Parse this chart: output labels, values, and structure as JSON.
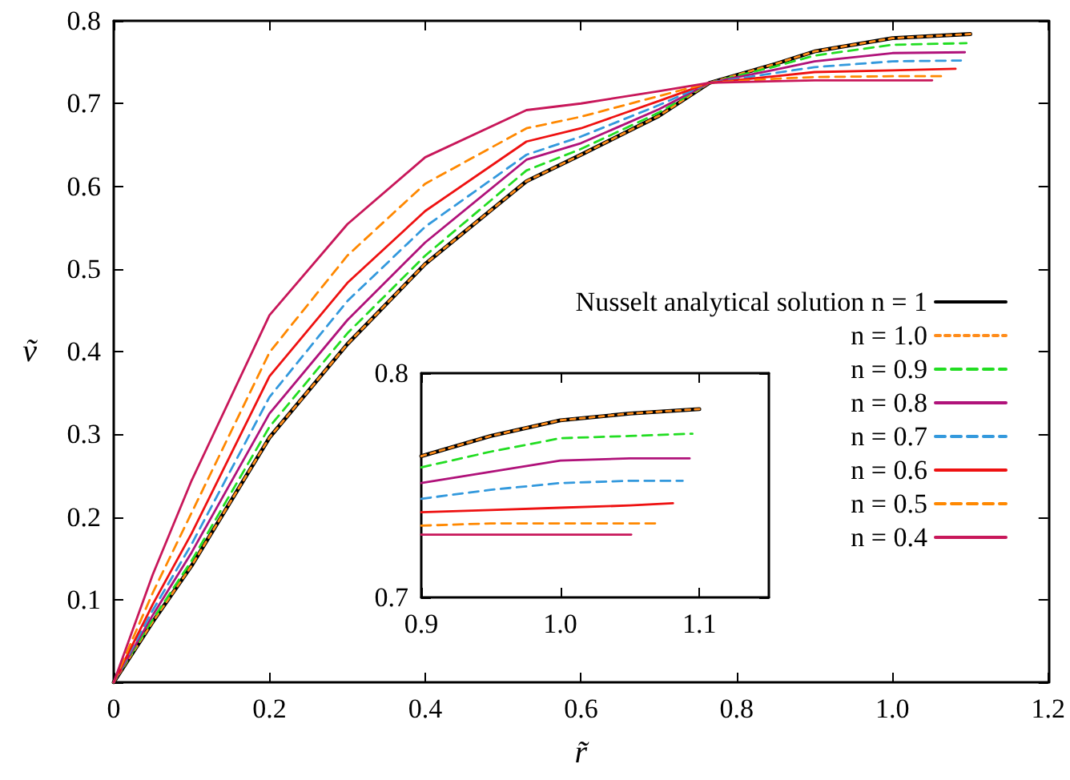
{
  "chart_data": [
    {
      "type": "line",
      "xlabel": "r̃",
      "ylabel": "ṽ",
      "xlim": [
        0,
        1.2
      ],
      "ylim": [
        0,
        0.8
      ],
      "xticks": [
        0,
        0.2,
        0.4,
        0.6,
        0.8,
        {
          "value": 1,
          "label": "1.0"
        },
        1.2
      ],
      "yticks": [
        {
          "value": 0,
          "label": null
        },
        0.1,
        0.2,
        0.3,
        0.4,
        0.5,
        0.6,
        0.7,
        0.8
      ],
      "grid": false,
      "legend": "bottom right",
      "marker": "none",
      "series": [
        {
          "name": "Nusselt analytical solution n = 1",
          "color": "#000000",
          "line_style": "solid",
          "x": [
            0,
            0.05,
            0.1,
            0.2,
            0.3,
            0.4,
            0.53,
            0.6,
            0.7,
            0.765,
            0.85,
            0.9,
            1.0,
            1.1
          ],
          "values": [
            0,
            0.073,
            0.141,
            0.296,
            0.409,
            0.506,
            0.606,
            0.638,
            0.685,
            0.725,
            0.748,
            0.763,
            0.779,
            0.784
          ]
        },
        {
          "name": "n = 1.0",
          "color": "#ff8c1a",
          "line_style": "dotted",
          "x": [
            0,
            0.05,
            0.1,
            0.2,
            0.3,
            0.4,
            0.53,
            0.6,
            0.7,
            0.765,
            0.85,
            0.9,
            1.0,
            1.1
          ],
          "values": [
            0,
            0.073,
            0.141,
            0.296,
            0.409,
            0.506,
            0.606,
            0.638,
            0.685,
            0.725,
            0.748,
            0.763,
            0.779,
            0.784
          ]
        },
        {
          "name": "n = 0.9",
          "color": "#22dd22",
          "line_style": "dashed",
          "x": [
            0,
            0.05,
            0.1,
            0.2,
            0.3,
            0.4,
            0.53,
            0.6,
            0.7,
            0.765,
            0.85,
            0.9,
            1.0,
            1.095
          ],
          "values": [
            0,
            0.076,
            0.147,
            0.309,
            0.422,
            0.516,
            0.619,
            0.645,
            0.689,
            0.725,
            0.745,
            0.758,
            0.771,
            0.773
          ]
        },
        {
          "name": "n = 0.8",
          "color": "#b0127a",
          "line_style": "solid",
          "x": [
            0,
            0.05,
            0.1,
            0.2,
            0.3,
            0.4,
            0.53,
            0.6,
            0.7,
            0.765,
            0.85,
            0.9,
            1.0,
            1.093
          ],
          "values": [
            0,
            0.081,
            0.157,
            0.325,
            0.438,
            0.532,
            0.632,
            0.652,
            0.693,
            0.725,
            0.741,
            0.751,
            0.761,
            0.762
          ]
        },
        {
          "name": "n = 0.7",
          "color": "#3399dd",
          "line_style": "dashed",
          "x": [
            0,
            0.05,
            0.1,
            0.2,
            0.3,
            0.4,
            0.53,
            0.6,
            0.7,
            0.765,
            0.85,
            0.9,
            1.0,
            1.088
          ],
          "values": [
            0,
            0.087,
            0.167,
            0.345,
            0.461,
            0.551,
            0.638,
            0.66,
            0.698,
            0.725,
            0.737,
            0.744,
            0.751,
            0.752
          ]
        },
        {
          "name": "n = 0.6",
          "color": "#ee1111",
          "line_style": "solid",
          "x": [
            0,
            0.05,
            0.1,
            0.2,
            0.3,
            0.4,
            0.53,
            0.6,
            0.7,
            0.765,
            0.85,
            0.9,
            1.0,
            1.081
          ],
          "values": [
            0,
            0.094,
            0.18,
            0.37,
            0.483,
            0.57,
            0.654,
            0.67,
            0.703,
            0.725,
            0.733,
            0.738,
            0.74,
            0.742
          ]
        },
        {
          "name": "n = 0.5",
          "color": "#ff8800",
          "line_style": "dashed",
          "x": [
            0,
            0.05,
            0.1,
            0.2,
            0.3,
            0.4,
            0.53,
            0.6,
            0.7,
            0.765,
            0.85,
            0.9,
            1.0,
            1.069
          ],
          "values": [
            0,
            0.108,
            0.205,
            0.399,
            0.516,
            0.603,
            0.67,
            0.684,
            0.709,
            0.725,
            0.73,
            0.732,
            0.733,
            0.733
          ]
        },
        {
          "name": "n = 0.4",
          "color": "#c8175a",
          "line_style": "solid",
          "x": [
            0,
            0.05,
            0.1,
            0.2,
            0.3,
            0.4,
            0.53,
            0.6,
            0.7,
            0.765,
            0.85,
            0.9,
            1.0,
            1.051
          ],
          "values": [
            0,
            0.13,
            0.244,
            0.444,
            0.554,
            0.635,
            0.692,
            0.7,
            0.715,
            0.725,
            0.727,
            0.728,
            0.728,
            0.728
          ]
        }
      ]
    },
    {
      "type": "line",
      "xlim": [
        0.9,
        1.15
      ],
      "ylim": [
        0.7,
        0.8
      ],
      "xticks": [
        0.9,
        {
          "value": 1,
          "label": "1.0"
        },
        1.1
      ],
      "yticks": [
        0.7,
        0.8
      ],
      "grid": false,
      "marker": "none",
      "series": [
        {
          "color": "#000000",
          "line_style": "solid",
          "x": [
            0.9,
            0.95,
            1.0,
            1.05,
            1.1
          ],
          "values": [
            0.763,
            0.772,
            0.779,
            0.782,
            0.784
          ]
        },
        {
          "color": "#ff8c1a",
          "line_style": "dotted",
          "x": [
            0.9,
            0.95,
            1.0,
            1.05,
            1.1
          ],
          "values": [
            0.763,
            0.772,
            0.779,
            0.782,
            0.784
          ]
        },
        {
          "color": "#22dd22",
          "line_style": "dashed",
          "x": [
            0.9,
            0.95,
            1.0,
            1.05,
            1.095
          ],
          "values": [
            0.758,
            0.765,
            0.771,
            0.772,
            0.773
          ]
        },
        {
          "color": "#b0127a",
          "line_style": "solid",
          "x": [
            0.9,
            0.95,
            1.0,
            1.05,
            1.093
          ],
          "values": [
            0.751,
            0.756,
            0.761,
            0.762,
            0.762
          ]
        },
        {
          "color": "#3399dd",
          "line_style": "dashed",
          "x": [
            0.9,
            0.95,
            1.0,
            1.05,
            1.088
          ],
          "values": [
            0.744,
            0.748,
            0.751,
            0.752,
            0.752
          ]
        },
        {
          "color": "#ee1111",
          "line_style": "solid",
          "x": [
            0.9,
            0.95,
            1.0,
            1.05,
            1.081
          ],
          "values": [
            0.738,
            0.739,
            0.74,
            0.741,
            0.742
          ]
        },
        {
          "color": "#ff8800",
          "line_style": "dashed",
          "x": [
            0.9,
            0.95,
            1.0,
            1.05,
            1.069
          ],
          "values": [
            0.732,
            0.733,
            0.733,
            0.733,
            0.733
          ]
        },
        {
          "color": "#c8175a",
          "line_style": "solid",
          "x": [
            0.9,
            0.95,
            1.0,
            1.051
          ],
          "values": [
            0.728,
            0.728,
            0.728,
            0.728
          ]
        }
      ]
    }
  ]
}
